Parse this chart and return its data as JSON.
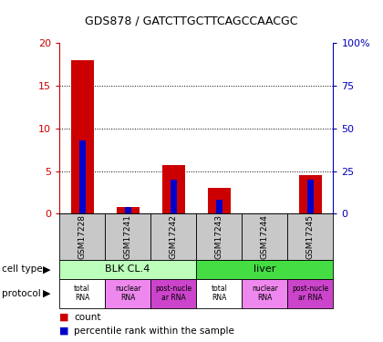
{
  "title": "GDS878 / GATCTTGCTTCAGCCAACGC",
  "samples": [
    "GSM17228",
    "GSM17241",
    "GSM17242",
    "GSM17243",
    "GSM17244",
    "GSM17245"
  ],
  "count_values": [
    18.0,
    0.8,
    5.7,
    3.0,
    0.0,
    4.5
  ],
  "percentile_values": [
    43,
    4,
    20,
    8,
    0,
    20
  ],
  "ylim_left": [
    0,
    20
  ],
  "ylim_right": [
    0,
    100
  ],
  "yticks_left": [
    0,
    5,
    10,
    15,
    20
  ],
  "yticks_right": [
    0,
    25,
    50,
    75,
    100
  ],
  "bar_color_red": "#CC0000",
  "bar_color_blue": "#0000CC",
  "left_tick_color": "#CC0000",
  "right_tick_color": "#0000BB",
  "sample_bg_color": "#C8C8C8",
  "cell_type_light_green": "#BBFFBB",
  "cell_type_green": "#44DD44",
  "protocol_white": "#FFFFFF",
  "protocol_light_purple": "#EE88EE",
  "protocol_dark_purple": "#CC44CC",
  "cell_spans": [
    [
      0,
      3,
      "BLK CL.4"
    ],
    [
      3,
      6,
      "liver"
    ]
  ],
  "prot_labels": [
    "total\nRNA",
    "nuclear\nRNA",
    "post-nucle\nar RNA",
    "total\nRNA",
    "nuclear\nRNA",
    "post-nucle\nar RNA"
  ],
  "prot_colors": [
    "white",
    "light_purple",
    "dark_purple",
    "white",
    "light_purple",
    "dark_purple"
  ],
  "cell_colors": [
    "light_green",
    "green"
  ]
}
